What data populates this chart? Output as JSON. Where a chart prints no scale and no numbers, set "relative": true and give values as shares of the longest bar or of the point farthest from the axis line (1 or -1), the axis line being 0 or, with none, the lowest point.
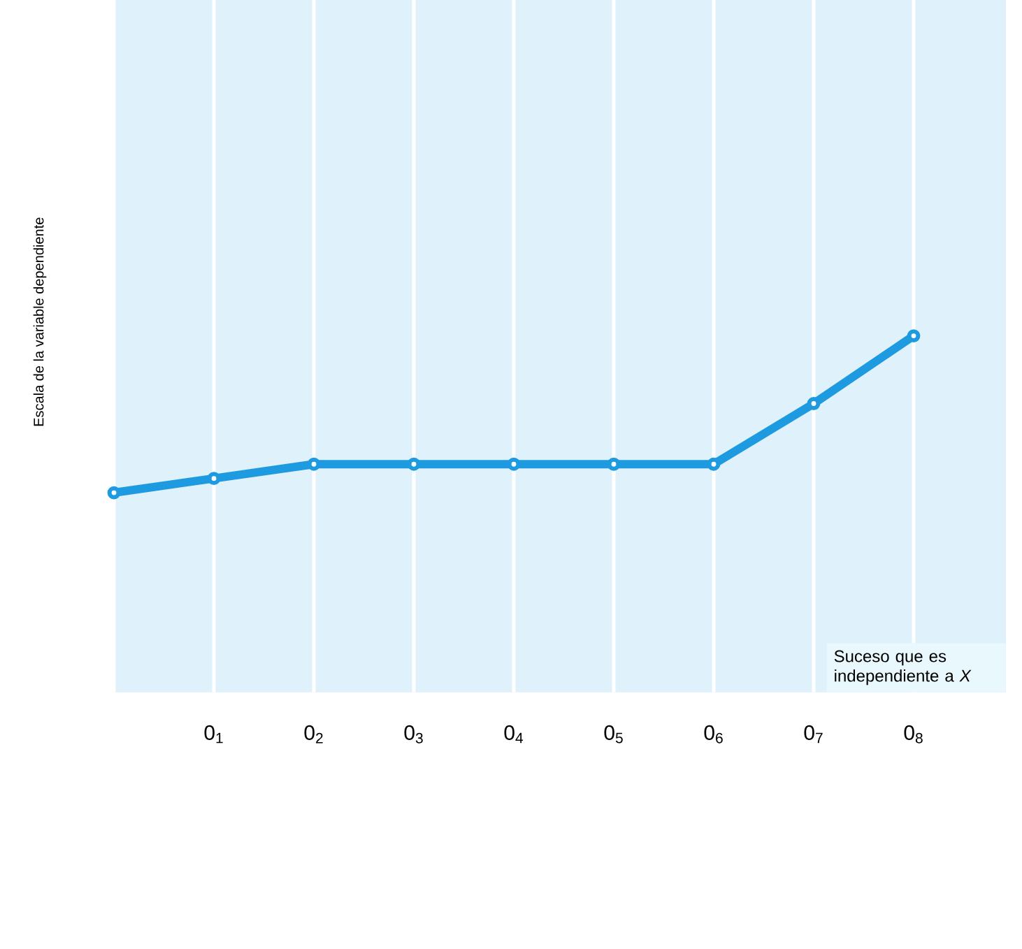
{
  "chart_data": {
    "type": "line",
    "relative": true,
    "ylabel": "Escala de la variable dependiente",
    "categories": [
      null,
      "0$_{1}$",
      "0$_{2}$",
      "0$_{3}$",
      "0$_{4}$",
      "0$_{5}$",
      "0$_{6}$",
      "0$_{7}$",
      "0$_{8}$"
    ],
    "series": [
      {
        "color": "#1e9be0",
        "values": [
          0.56,
          0.6,
          0.64,
          0.64,
          0.64,
          0.64,
          0.64,
          0.81,
          1
        ]
      }
    ],
    "marker": "circle",
    "line_style": "solid",
    "grid": "x",
    "tick_labels": "x",
    "annotations": [
      "Suceso que es independiente a *X*"
    ]
  }
}
